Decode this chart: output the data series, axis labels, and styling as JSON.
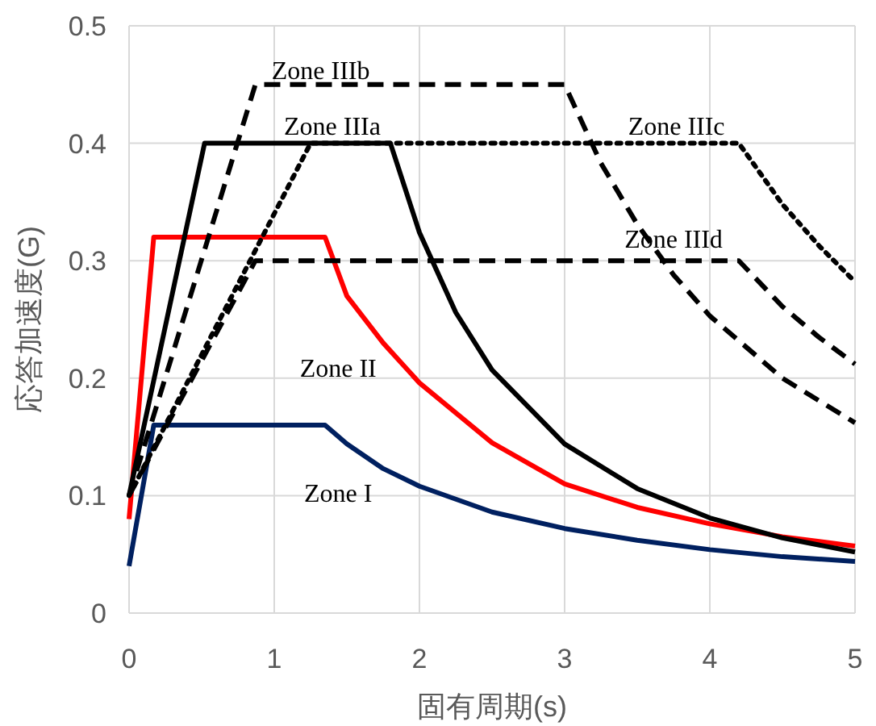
{
  "chart_data": {
    "type": "line",
    "xlabel": "固有周期(s)",
    "ylabel": "応答加速度(G)",
    "xlim": [
      0,
      5
    ],
    "ylim": [
      0,
      0.5
    ],
    "xticks": [
      0,
      1,
      2,
      3,
      4,
      5
    ],
    "yticks": [
      0,
      0.1,
      0.2,
      0.3,
      0.4,
      0.5
    ],
    "grid": true,
    "series": [
      {
        "name": "Zone I",
        "color": "#002060",
        "line_style": "solid",
        "x": [
          0,
          0.17,
          1.35,
          1.5,
          1.75,
          2,
          2.5,
          3,
          3.5,
          4,
          4.5,
          5
        ],
        "values": [
          0.04,
          0.16,
          0.16,
          0.144,
          0.123,
          0.108,
          0.086,
          0.072,
          0.062,
          0.054,
          0.048,
          0.044
        ]
      },
      {
        "name": "Zone II",
        "color": "#ff0000",
        "line_style": "solid",
        "x": [
          0,
          0.17,
          1.35,
          1.5,
          1.75,
          2,
          2.5,
          3,
          3.5,
          4,
          4.5,
          5
        ],
        "values": [
          0.08,
          0.32,
          0.32,
          0.27,
          0.23,
          0.196,
          0.145,
          0.11,
          0.09,
          0.076,
          0.065,
          0.057
        ]
      },
      {
        "name": "Zone IIIa",
        "color": "#000000",
        "line_style": "solid",
        "x": [
          0,
          0.52,
          1.8,
          2,
          2.25,
          2.5,
          3,
          3.5,
          4,
          4.5,
          5
        ],
        "values": [
          0.1,
          0.4,
          0.4,
          0.324,
          0.256,
          0.207,
          0.144,
          0.106,
          0.081,
          0.064,
          0.052
        ]
      },
      {
        "name": "Zone IIIb",
        "color": "#000000",
        "line_style": "dashed",
        "x": [
          0,
          0.87,
          3,
          3.25,
          3.5,
          3.75,
          4,
          4.5,
          5
        ],
        "values": [
          0.1,
          0.45,
          0.45,
          0.383,
          0.331,
          0.288,
          0.253,
          0.2,
          0.162
        ]
      },
      {
        "name": "Zone IIIc",
        "color": "#000000",
        "line_style": "dotted",
        "x": [
          0,
          1.25,
          4.2,
          4.5,
          4.75,
          5
        ],
        "values": [
          0.1,
          0.4,
          0.4,
          0.348,
          0.313,
          0.282
        ]
      },
      {
        "name": "Zone IIId",
        "color": "#000000",
        "line_style": "dashed",
        "x": [
          0,
          0.87,
          4.2,
          4.5,
          4.75,
          5
        ],
        "values": [
          0.1,
          0.3,
          0.3,
          0.261,
          0.235,
          0.212
        ]
      }
    ]
  }
}
